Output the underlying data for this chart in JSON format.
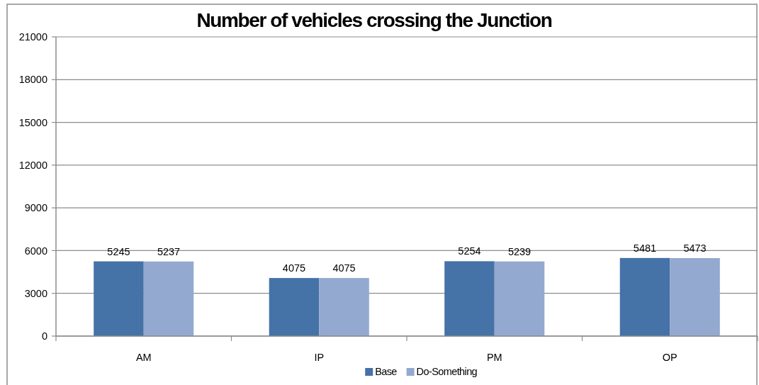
{
  "chart_data": {
    "type": "bar",
    "title": "Number of vehicles crossing the Junction",
    "categories": [
      "AM",
      "IP",
      "PM",
      "OP"
    ],
    "series": [
      {
        "name": "Base",
        "color": "#4572a7",
        "values": [
          5245,
          4075,
          5254,
          5481
        ]
      },
      {
        "name": "Do-Something",
        "color": "#93a9cf",
        "values": [
          5237,
          4075,
          5239,
          5473
        ]
      }
    ],
    "ylim": [
      0,
      21000
    ],
    "yticks": [
      0,
      3000,
      6000,
      9000,
      12000,
      15000,
      18000,
      21000
    ],
    "grid": "y",
    "legend": "bottom",
    "data_labels": true
  }
}
